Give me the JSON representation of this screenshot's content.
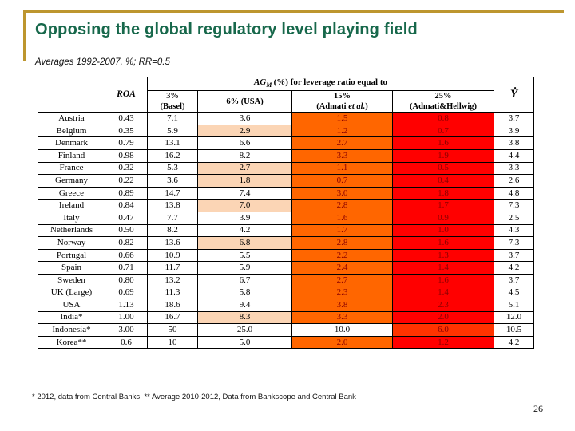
{
  "slide": {
    "title": "Opposing the global regulatory level playing field",
    "subtitle": "Averages 1992-2007, %; RR=0.5",
    "footnote": "* 2012, data from Central Banks. ** Average 2010-2012, Data from Bankscope and Central Bank",
    "page_number": "26"
  },
  "colors": {
    "title_green": "#17684B",
    "gold": "#BD962F",
    "peach": "#FBD5B5",
    "orange": "#FF6600",
    "red": "#FF0000",
    "orange_red": "#FF3300",
    "on_color_text": "#8B0000"
  },
  "table": {
    "headers": {
      "roa": "ROA",
      "span_ag": "AG",
      "span_sub": "M",
      "span_rest": " (%) for leverage ratio equal to",
      "basel_l1": "3%",
      "basel_l2": "(Basel)",
      "usa": "6% (USA)",
      "admati_l1": "15%",
      "admati_pre": "(Admati ",
      "admati_it": "et al.",
      "admati_post": ")",
      "hellwig_l1": "25%",
      "hellwig_l2": "(Admati&Hellwig)",
      "y": "Ẏ"
    },
    "rows": [
      {
        "country": "Austria",
        "roa": "0.43",
        "c3": "7.1",
        "c6": "3.6",
        "c6_peach": false,
        "c15": "1.5",
        "c15_bg": "orange",
        "c25": "0.8",
        "c25_bg": "red",
        "y": "3.7"
      },
      {
        "country": "Belgium",
        "roa": "0.35",
        "c3": "5.9",
        "c6": "2.9",
        "c6_peach": true,
        "c15": "1.2",
        "c15_bg": "orange",
        "c25": "0.7",
        "c25_bg": "red",
        "y": "3.9"
      },
      {
        "country": "Denmark",
        "roa": "0.79",
        "c3": "13.1",
        "c6": "6.6",
        "c6_peach": false,
        "c15": "2.7",
        "c15_bg": "orange",
        "c25": "1.6",
        "c25_bg": "red",
        "y": "3.8"
      },
      {
        "country": "Finland",
        "roa": "0.98",
        "c3": "16.2",
        "c6": "8.2",
        "c6_peach": false,
        "c15": "3.3",
        "c15_bg": "orange",
        "c25": "1.9",
        "c25_bg": "red",
        "y": "4.4"
      },
      {
        "country": "France",
        "roa": "0.32",
        "c3": "5.3",
        "c6": "2.7",
        "c6_peach": true,
        "c15": "1.1",
        "c15_bg": "orange",
        "c25": "0.5",
        "c25_bg": "red",
        "y": "3.3"
      },
      {
        "country": "Germany",
        "roa": "0.22",
        "c3": "3.6",
        "c6": "1.8",
        "c6_peach": true,
        "c15": "0.7",
        "c15_bg": "orange",
        "c25": "0.4",
        "c25_bg": "red",
        "y": "2.6"
      },
      {
        "country": "Greece",
        "roa": "0.89",
        "c3": "14.7",
        "c6": "7.4",
        "c6_peach": false,
        "c15": "3.0",
        "c15_bg": "orange",
        "c25": "1.8",
        "c25_bg": "red",
        "y": "4.8"
      },
      {
        "country": "Ireland",
        "roa": "0.84",
        "c3": "13.8",
        "c6": "7.0",
        "c6_peach": true,
        "c15": "2.8",
        "c15_bg": "orange",
        "c25": "1.7",
        "c25_bg": "red",
        "y": "7.3"
      },
      {
        "country": "Italy",
        "roa": "0.47",
        "c3": "7.7",
        "c6": "3.9",
        "c6_peach": false,
        "c15": "1.6",
        "c15_bg": "orange",
        "c25": "0.9",
        "c25_bg": "red",
        "y": "2.5"
      },
      {
        "country": "Netherlands",
        "roa": "0.50",
        "c3": "8.2",
        "c6": "4.2",
        "c6_peach": false,
        "c15": "1.7",
        "c15_bg": "orange",
        "c25": "1.0",
        "c25_bg": "red",
        "y": "4.3"
      },
      {
        "country": "Norway",
        "roa": "0.82",
        "c3": "13.6",
        "c6": "6.8",
        "c6_peach": true,
        "c15": "2.8",
        "c15_bg": "orange",
        "c25": "1.6",
        "c25_bg": "red",
        "y": "7.3"
      },
      {
        "country": "Portugal",
        "roa": "0.66",
        "c3": "10.9",
        "c6": "5.5",
        "c6_peach": false,
        "c15": "2.2",
        "c15_bg": "orange",
        "c25": "1.3",
        "c25_bg": "red",
        "y": "3.7"
      },
      {
        "country": "Spain",
        "roa": "0.71",
        "c3": "11.7",
        "c6": "5.9",
        "c6_peach": false,
        "c15": "2.4",
        "c15_bg": "orange",
        "c25": "1.4",
        "c25_bg": "red",
        "y": "4.2"
      },
      {
        "country": "Sweden",
        "roa": "0.80",
        "c3": "13.2",
        "c6": "6.7",
        "c6_peach": false,
        "c15": "2.7",
        "c15_bg": "orange",
        "c25": "1.6",
        "c25_bg": "red",
        "y": "3.7"
      },
      {
        "country": "UK (Large)",
        "roa": "0.69",
        "c3": "11.3",
        "c6": "5.8",
        "c6_peach": false,
        "c15": "2.3",
        "c15_bg": "orange",
        "c25": "1.4",
        "c25_bg": "red",
        "y": "4.5"
      },
      {
        "country": "USA",
        "roa": "1.13",
        "c3": "18.6",
        "c6": "9.4",
        "c6_peach": false,
        "c15": "3.8",
        "c15_bg": "orange",
        "c25": "2.3",
        "c25_bg": "red",
        "y": "5.1"
      },
      {
        "country": "India*",
        "roa": "1.00",
        "c3": "16.7",
        "c6": "8.3",
        "c6_peach": true,
        "c15": "3.3",
        "c15_bg": "orange",
        "c25": "2.0",
        "c25_bg": "red",
        "y": "12.0"
      },
      {
        "country": "Indonesia*",
        "roa": "3.00",
        "c3": "50",
        "c6": "25.0",
        "c6_peach": false,
        "c15": "10.0",
        "c15_bg": "white",
        "c25": "6.0",
        "c25_bg": "orangered",
        "y": "10.5"
      },
      {
        "country": "Korea**",
        "roa": "0.6",
        "c3": "10",
        "c6": "5.0",
        "c6_peach": false,
        "c15": "2.0",
        "c15_bg": "orange",
        "c25": "1.2",
        "c25_bg": "red",
        "y": "4.2"
      }
    ]
  }
}
